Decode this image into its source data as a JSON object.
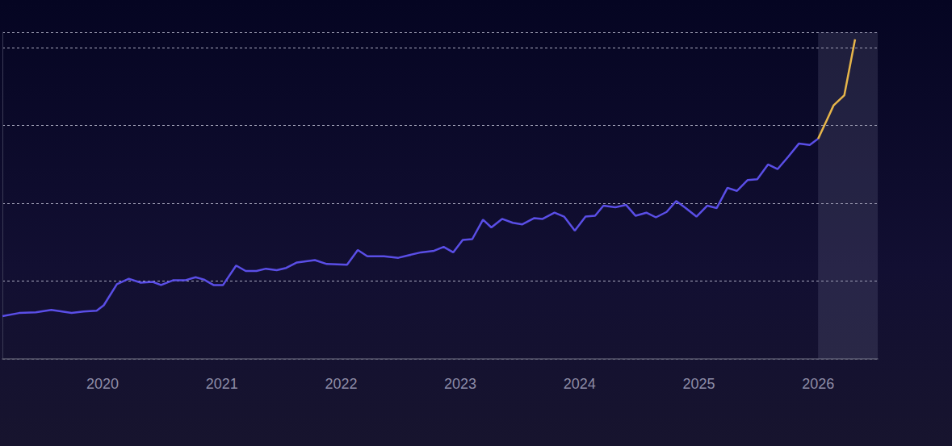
{
  "chart_data": {
    "type": "line",
    "grid": true,
    "tick_labels": "x",
    "xlim": [
      2019.16,
      2026.5
    ],
    "xticks": [
      2020,
      2021,
      2022,
      2023,
      2024,
      2025,
      2026
    ],
    "ylim": [
      0,
      4.2
    ],
    "yticks": [
      0,
      1,
      2,
      3,
      4
    ],
    "shaded_range": [
      2026.0,
      2026.5
    ],
    "series": [
      {
        "color": "#5a4ee6",
        "x": [
          2019.16,
          2019.3,
          2019.44,
          2019.57,
          2019.74,
          2019.84,
          2019.95,
          2020.01,
          2020.12,
          2020.22,
          2020.32,
          2020.42,
          2020.49,
          2020.59,
          2020.69,
          2020.78,
          2020.85,
          2020.93,
          2021.01,
          2021.12,
          2021.2,
          2021.29,
          2021.37,
          2021.46,
          2021.54,
          2021.63,
          2021.78,
          2021.88,
          2022.05,
          2022.14,
          2022.22,
          2022.36,
          2022.48,
          2022.56,
          2022.67,
          2022.78,
          2022.86,
          2022.94,
          2023.02,
          2023.1,
          2023.19,
          2023.26,
          2023.35,
          2023.44,
          2023.52,
          2023.62,
          2023.69,
          2023.79,
          2023.87,
          2023.96,
          2024.05,
          2024.13,
          2024.2,
          2024.3,
          2024.39,
          2024.47,
          2024.56,
          2024.64,
          2024.73,
          2024.81,
          2024.89,
          2024.98,
          2025.07,
          2025.15,
          2025.24,
          2025.32,
          2025.41,
          2025.49,
          2025.58,
          2025.66,
          2025.75,
          2025.84,
          2025.93,
          2026.0
        ],
        "values": [
          0.55,
          0.59,
          0.6,
          0.63,
          0.59,
          0.61,
          0.62,
          0.69,
          0.96,
          1.03,
          0.98,
          0.99,
          0.95,
          1.01,
          1.01,
          1.05,
          1.02,
          0.95,
          0.95,
          1.2,
          1.13,
          1.13,
          1.16,
          1.14,
          1.17,
          1.24,
          1.27,
          1.22,
          1.21,
          1.4,
          1.32,
          1.32,
          1.3,
          1.33,
          1.37,
          1.39,
          1.44,
          1.37,
          1.53,
          1.54,
          1.79,
          1.69,
          1.8,
          1.75,
          1.73,
          1.81,
          1.8,
          1.88,
          1.83,
          1.65,
          1.83,
          1.84,
          1.97,
          1.95,
          1.98,
          1.84,
          1.88,
          1.82,
          1.89,
          2.03,
          1.94,
          1.83,
          1.97,
          1.94,
          2.2,
          2.16,
          2.3,
          2.31,
          2.5,
          2.44,
          2.6,
          2.77,
          2.75,
          2.83
        ]
      },
      {
        "color": "#e6b54a",
        "x": [
          2026.0,
          2026.07,
          2026.13,
          2026.22,
          2026.31
        ],
        "values": [
          2.83,
          3.06,
          3.26,
          3.39,
          4.11
        ]
      }
    ]
  }
}
